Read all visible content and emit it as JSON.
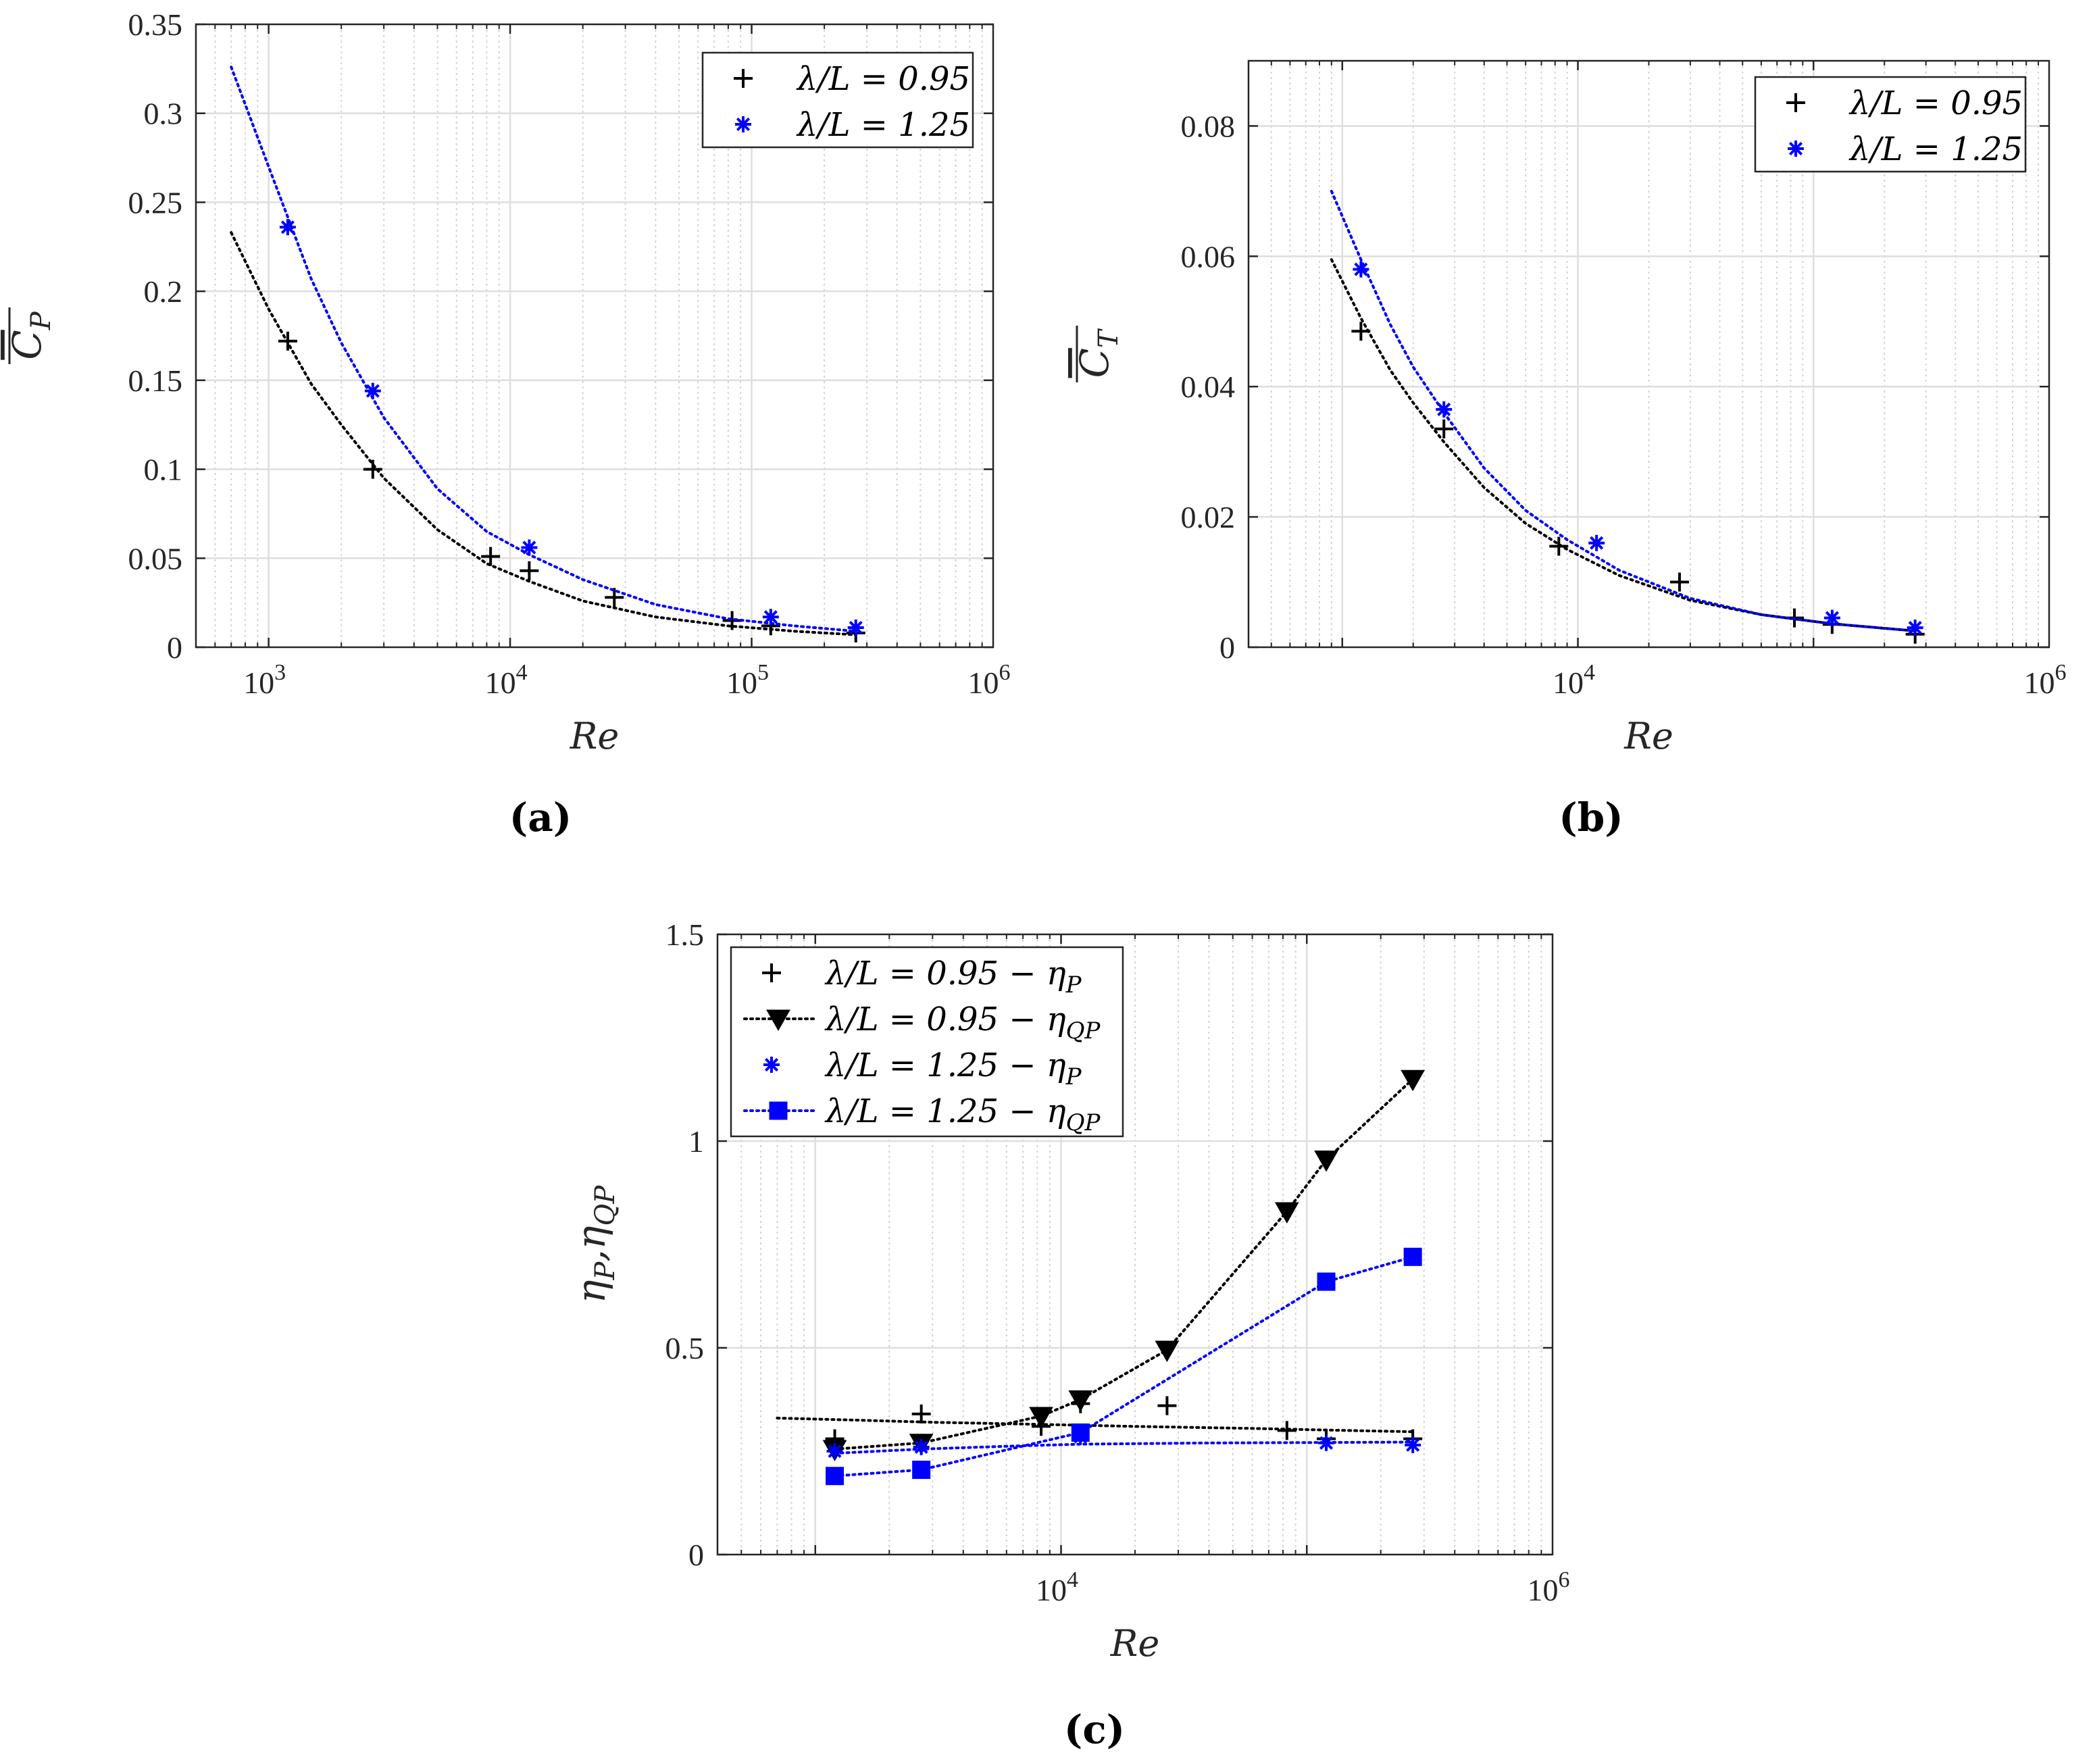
{
  "chart_data": [
    {
      "type": "scatter",
      "panel_label": "(a)",
      "xscale": "log",
      "xlim": [
        500,
        1000000
      ],
      "ylim": [
        0,
        0.35
      ],
      "xticks": [
        {
          "value": 1000,
          "label": "10",
          "exp": "3"
        },
        {
          "value": 10000,
          "label": "10",
          "exp": "4"
        },
        {
          "value": 100000,
          "label": "10",
          "exp": "5"
        },
        {
          "value": 1000000,
          "label": "10",
          "exp": "6"
        }
      ],
      "yticks": [
        {
          "value": 0,
          "label": "0"
        },
        {
          "value": 0.05,
          "label": "0.05"
        },
        {
          "value": 0.1,
          "label": "0.1"
        },
        {
          "value": 0.15,
          "label": "0.15"
        },
        {
          "value": 0.2,
          "label": "0.2"
        },
        {
          "value": 0.25,
          "label": "0.25"
        },
        {
          "value": 0.3,
          "label": "0.3"
        },
        {
          "value": 0.35,
          "label": "0.35"
        }
      ],
      "xlabel": "Re",
      "ylabel": "C",
      "ylabel_sub": "P",
      "grid": true,
      "legend_position": "top-right",
      "series": [
        {
          "name": "λ/L = 0.95",
          "color": "#000000",
          "marker": "plus",
          "x": [
            1200,
            2700,
            8300,
            12000,
            27000,
            83000,
            120000,
            270000
          ],
          "y": [
            0.172,
            0.1,
            0.051,
            0.043,
            0.028,
            0.015,
            0.012,
            0.008
          ],
          "fit_x": [
            700,
            1000,
            1500,
            2000,
            3000,
            5000,
            8000,
            12000,
            20000,
            40000,
            80000,
            150000,
            270000
          ],
          "fit_y": [
            0.233,
            0.19,
            0.148,
            0.125,
            0.095,
            0.066,
            0.047,
            0.037,
            0.026,
            0.017,
            0.012,
            0.009,
            0.007
          ]
        },
        {
          "name": "λ/L = 1.25",
          "color": "#0000ff",
          "marker": "asterisk",
          "x": [
            1200,
            2700,
            12000,
            120000,
            270000
          ],
          "y": [
            0.236,
            0.144,
            0.056,
            0.017,
            0.011
          ],
          "fit_x": [
            700,
            1000,
            1500,
            2000,
            3000,
            5000,
            8000,
            12000,
            20000,
            40000,
            80000,
            150000,
            270000
          ],
          "fit_y": [
            0.326,
            0.27,
            0.207,
            0.171,
            0.129,
            0.089,
            0.065,
            0.052,
            0.038,
            0.024,
            0.016,
            0.012,
            0.009
          ]
        }
      ]
    },
    {
      "type": "scatter",
      "panel_label": "(b)",
      "xscale": "log",
      "xlim": [
        400,
        1000000
      ],
      "ylim": [
        0,
        0.09
      ],
      "xticks": [
        {
          "value": 10000,
          "label": "10",
          "exp": "4"
        },
        {
          "value": 1000000,
          "label": "10",
          "exp": "6"
        }
      ],
      "yticks": [
        {
          "value": 0,
          "label": "0"
        },
        {
          "value": 0.02,
          "label": "0.02"
        },
        {
          "value": 0.04,
          "label": "0.04"
        },
        {
          "value": 0.06,
          "label": "0.06"
        },
        {
          "value": 0.08,
          "label": "0.08"
        }
      ],
      "xlabel": "Re",
      "ylabel": "C",
      "ylabel_sub": "T",
      "grid": true,
      "legend_position": "top-right",
      "series": [
        {
          "name": "λ/L = 0.95",
          "color": "#000000",
          "marker": "plus",
          "x": [
            1200,
            2700,
            8300,
            27000,
            83000,
            120000,
            270000
          ],
          "y": [
            0.0485,
            0.0335,
            0.0155,
            0.01,
            0.0045,
            0.0035,
            0.002
          ],
          "fit_x": [
            900,
            1200,
            1600,
            2000,
            2700,
            4000,
            6000,
            9000,
            15000,
            30000,
            60000,
            120000,
            270000
          ],
          "fit_y": [
            0.0595,
            0.0505,
            0.0425,
            0.0375,
            0.0315,
            0.0245,
            0.019,
            0.015,
            0.011,
            0.0072,
            0.005,
            0.0036,
            0.0025
          ]
        },
        {
          "name": "λ/L = 1.25",
          "color": "#0000ff",
          "marker": "asterisk",
          "x": [
            1200,
            2700,
            12000,
            120000,
            270000
          ],
          "y": [
            0.058,
            0.0365,
            0.016,
            0.0045,
            0.003
          ],
          "fit_x": [
            900,
            1200,
            1600,
            2000,
            2700,
            4000,
            6000,
            9000,
            15000,
            30000,
            60000,
            120000,
            270000
          ],
          "fit_y": [
            0.07,
            0.0595,
            0.0495,
            0.043,
            0.036,
            0.0275,
            0.021,
            0.0165,
            0.0118,
            0.0075,
            0.005,
            0.0036,
            0.0025
          ]
        }
      ]
    },
    {
      "type": "line",
      "panel_label": "(c)",
      "xscale": "log",
      "xlim": [
        400,
        1000000
      ],
      "ylim": [
        0,
        1.5
      ],
      "xticks": [
        {
          "value": 10000,
          "label": "10",
          "exp": "4"
        },
        {
          "value": 1000000,
          "label": "10",
          "exp": "6"
        }
      ],
      "yticks": [
        {
          "value": 0,
          "label": "0"
        },
        {
          "value": 0.5,
          "label": "0.5"
        },
        {
          "value": 1,
          "label": "1"
        },
        {
          "value": 1.5,
          "label": "1.5"
        }
      ],
      "xlabel": "Re",
      "ylabel": "η",
      "ylabel_sub1": "P",
      "ylabel_mid": ",η",
      "ylabel_sub2": "QP",
      "grid": true,
      "legend_position": "top-left",
      "series": [
        {
          "name": "λ/L = 0.95 − η",
          "name_sub": "P",
          "color": "#000000",
          "marker": "plus",
          "line": false,
          "x": [
            1200,
            2700,
            8300,
            12000,
            27000,
            83000,
            120000,
            270000
          ],
          "y": [
            0.28,
            0.34,
            0.31,
            0.365,
            0.36,
            0.3,
            0.28,
            0.28
          ],
          "fit_x": [
            700,
            1500,
            3000,
            8000,
            20000,
            60000,
            150000,
            270000
          ],
          "fit_y": [
            0.33,
            0.325,
            0.32,
            0.315,
            0.31,
            0.305,
            0.3,
            0.297
          ]
        },
        {
          "name": "λ/L = 0.95 − η",
          "name_sub": "QP",
          "color": "#000000",
          "marker": "triangle-down",
          "line": true,
          "x": [
            1200,
            2700,
            8300,
            12000,
            27000,
            83000,
            120000,
            270000
          ],
          "y": [
            0.255,
            0.27,
            0.335,
            0.375,
            0.495,
            0.83,
            0.955,
            1.15
          ]
        },
        {
          "name": "λ/L = 1.25 − η",
          "name_sub": "P",
          "color": "#0000ff",
          "marker": "asterisk",
          "line": false,
          "x": [
            1200,
            2700,
            12000,
            120000,
            270000
          ],
          "y": [
            0.25,
            0.26,
            0.285,
            0.27,
            0.265
          ],
          "fit_x": [
            1200,
            2700,
            6000,
            12000,
            40000,
            120000,
            270000
          ],
          "fit_y": [
            0.245,
            0.255,
            0.262,
            0.267,
            0.27,
            0.271,
            0.272
          ]
        },
        {
          "name": "λ/L = 1.25 − η",
          "name_sub": "QP",
          "color": "#0000ff",
          "marker": "square",
          "line": true,
          "x": [
            1200,
            2700,
            12000,
            120000,
            270000
          ],
          "y": [
            0.19,
            0.205,
            0.295,
            0.66,
            0.72
          ]
        }
      ]
    }
  ]
}
